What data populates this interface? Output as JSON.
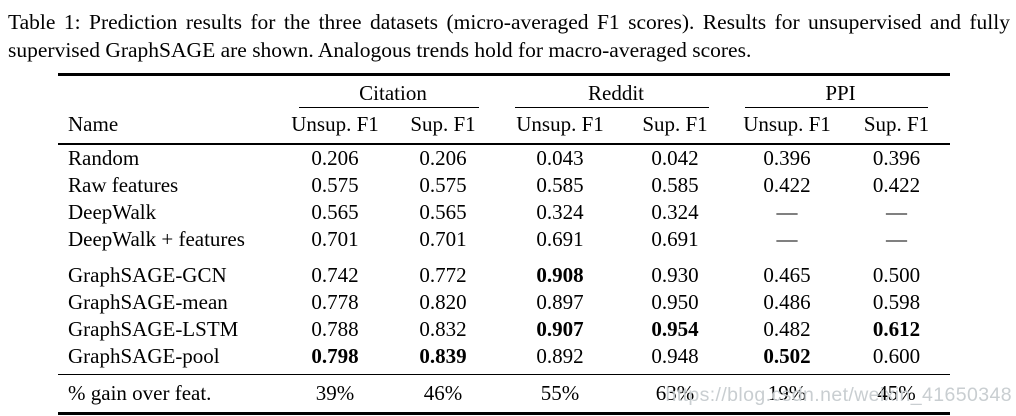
{
  "caption": "Table 1: Prediction results for the three datasets (micro-averaged F1 scores). Results for unsupervised and fully supervised GraphSAGE are shown. Analogous trends hold for macro-averaged scores.",
  "table": {
    "name_header": "Name",
    "groups": [
      {
        "label": "Citation"
      },
      {
        "label": "Reddit"
      },
      {
        "label": "PPI"
      }
    ],
    "sub_headers": [
      "Unsup. F1",
      "Sup. F1",
      "Unsup. F1",
      "Sup. F1",
      "Unsup. F1",
      "Sup. F1"
    ],
    "blocks": [
      {
        "rows": [
          {
            "name": "Random",
            "values": [
              "0.206",
              "0.206",
              "0.043",
              "0.042",
              "0.396",
              "0.396"
            ],
            "bold": [
              false,
              false,
              false,
              false,
              false,
              false
            ]
          },
          {
            "name": "Raw features",
            "values": [
              "0.575",
              "0.575",
              "0.585",
              "0.585",
              "0.422",
              "0.422"
            ],
            "bold": [
              false,
              false,
              false,
              false,
              false,
              false
            ]
          },
          {
            "name": "DeepWalk",
            "values": [
              "0.565",
              "0.565",
              "0.324",
              "0.324",
              "—",
              "—"
            ],
            "bold": [
              false,
              false,
              false,
              false,
              false,
              false
            ]
          },
          {
            "name": "DeepWalk + features",
            "values": [
              "0.701",
              "0.701",
              "0.691",
              "0.691",
              "—",
              "—"
            ],
            "bold": [
              false,
              false,
              false,
              false,
              false,
              false
            ]
          }
        ]
      },
      {
        "rows": [
          {
            "name": "GraphSAGE-GCN",
            "values": [
              "0.742",
              "0.772",
              "0.908",
              "0.930",
              "0.465",
              "0.500"
            ],
            "bold": [
              false,
              false,
              true,
              false,
              false,
              false
            ]
          },
          {
            "name": "GraphSAGE-mean",
            "values": [
              "0.778",
              "0.820",
              "0.897",
              "0.950",
              "0.486",
              "0.598"
            ],
            "bold": [
              false,
              false,
              false,
              false,
              false,
              false
            ]
          },
          {
            "name": "GraphSAGE-LSTM",
            "values": [
              "0.788",
              "0.832",
              "0.907",
              "0.954",
              "0.482",
              "0.612"
            ],
            "bold": [
              false,
              false,
              true,
              true,
              false,
              true
            ]
          },
          {
            "name": "GraphSAGE-pool",
            "values": [
              "0.798",
              "0.839",
              "0.892",
              "0.948",
              "0.502",
              "0.600"
            ],
            "bold": [
              true,
              true,
              false,
              false,
              true,
              false
            ]
          }
        ]
      }
    ],
    "footer": {
      "name": "% gain over feat.",
      "values": [
        "39%",
        "46%",
        "55%",
        "63%",
        "19%",
        "45%"
      ]
    }
  },
  "watermark": "https://blog.csdn.net/weixin_41650348",
  "colors": {
    "text": "#000000",
    "background": "#ffffff",
    "rule": "#000000",
    "watermark": "#c6cbcf"
  }
}
